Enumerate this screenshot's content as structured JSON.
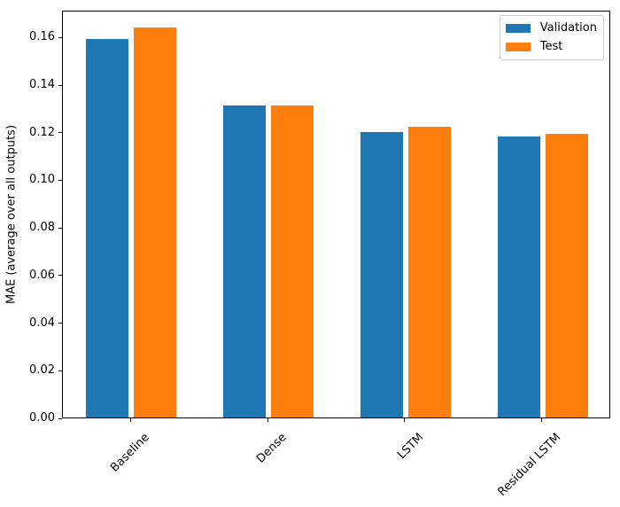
{
  "chart_data": {
    "type": "bar",
    "title": "",
    "xlabel": "",
    "ylabel": "MAE (average over all outputs)",
    "categories": [
      "Baseline",
      "Dense",
      "LSTM",
      "Residual LSTM"
    ],
    "series": [
      {
        "name": "Validation",
        "color": "#1f77b4",
        "values": [
          0.159,
          0.131,
          0.12,
          0.118
        ]
      },
      {
        "name": "Test",
        "color": "#ff7f0e",
        "values": [
          0.164,
          0.131,
          0.122,
          0.119
        ]
      }
    ],
    "ylim": [
      0,
      0.1713
    ],
    "yticks": [
      0.0,
      0.02,
      0.04,
      0.06,
      0.08,
      0.1,
      0.12,
      0.14,
      0.16
    ],
    "ytick_labels": [
      "0.00",
      "0.02",
      "0.04",
      "0.06",
      "0.08",
      "0.10",
      "0.12",
      "0.14",
      "0.16"
    ],
    "xtick_rotation_deg": 45,
    "grid": false,
    "legend": {
      "position": "upper right",
      "labels": [
        "Validation",
        "Test"
      ]
    },
    "colors": {
      "axis": "#000000",
      "text": "#000000",
      "background": "#ffffff",
      "legend_border": "#cccccc"
    }
  }
}
